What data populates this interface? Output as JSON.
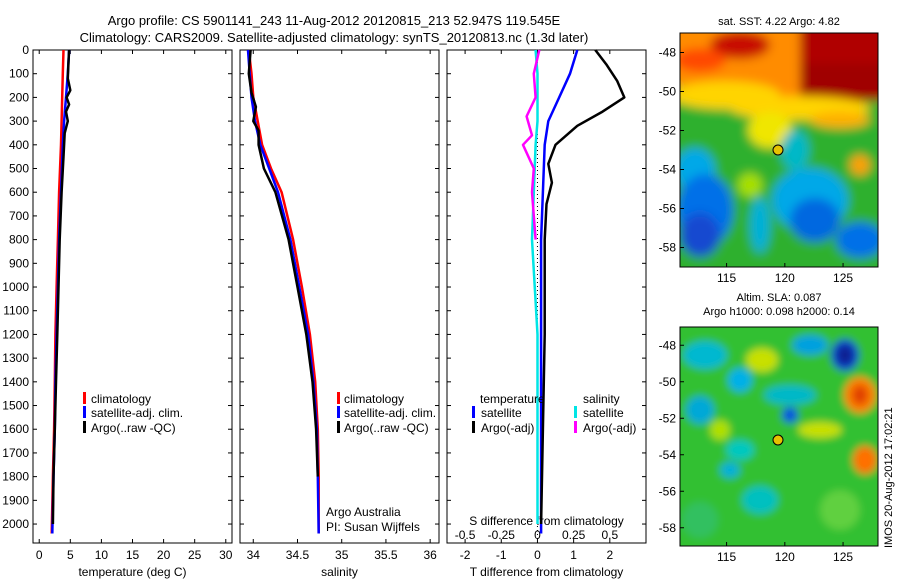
{
  "header": {
    "title_line1": "Argo profile: CS 5901141_243 11-Aug-2012 20120815_213 52.947S 119.545E",
    "title_line2": "Climatology: CARS2009. Satellite-adjusted climatology: synTS_20120813.nc (1.3d later)"
  },
  "colors": {
    "climatology": "#ff0000",
    "satellite": "#0000ff",
    "argo": "#000000",
    "argo_salinity": "#ff00ff",
    "satellite_salinity": "#00e5e5"
  },
  "panel_text": {
    "temp_legend": [
      "climatology",
      "satellite-adj. clim.",
      "Argo(..raw -QC)"
    ],
    "sal_legend": [
      "climatology",
      "satellite-adj. clim.",
      "Argo(..raw -QC)"
    ],
    "diff_legend_temp_title": "temperature",
    "diff_legend_sal_title": "salinity",
    "diff_legend_labels": [
      "satellite",
      "Argo(-adj)",
      "satellite",
      "Argo(-adj)"
    ],
    "credit_line1": "Argo Australia",
    "credit_line2": "PI: Susan Wijffels",
    "sst_title": "sat. SST: 4.22 Argo: 4.82",
    "sla_title_line1": "Altim. SLA: 0.087",
    "sla_title_line2": "Argo h1000: 0.098 h2000: 0.14",
    "timestamp": "IMOS 20-Aug-2012 17:02:21"
  },
  "chart_data": [
    {
      "id": "temperature",
      "type": "line",
      "xlabel": "temperature (deg C)",
      "ylabel": "",
      "xlim": [
        -1,
        31
      ],
      "ylim": [
        2080,
        0
      ],
      "xticks": [
        "0",
        "5",
        "10",
        "15",
        "20",
        "25",
        "30"
      ],
      "xtick_values": [
        0,
        5,
        10,
        15,
        20,
        25,
        30
      ],
      "yticks": [
        "0",
        "100",
        "200",
        "300",
        "400",
        "500",
        "600",
        "700",
        "800",
        "900",
        "1000",
        "1100",
        "1200",
        "1300",
        "1400",
        "1500",
        "1600",
        "1700",
        "1800",
        "1900",
        "2000"
      ],
      "ytick_values": [
        0,
        100,
        200,
        300,
        400,
        500,
        600,
        700,
        800,
        900,
        1000,
        1100,
        1200,
        1300,
        1400,
        1500,
        1600,
        1700,
        1800,
        1900,
        2000
      ],
      "series": [
        {
          "name": "climatology",
          "color": "#ff0000",
          "x": [
            3.9,
            3.8,
            3.7,
            3.6,
            3.5,
            3.2,
            3.0,
            2.8,
            2.6,
            2.5,
            2.4,
            2.2,
            2.0
          ],
          "y": [
            0,
            100,
            200,
            300,
            400,
            600,
            800,
            1000,
            1200,
            1400,
            1600,
            1800,
            2040
          ]
        },
        {
          "name": "satellite-adj. clim.",
          "color": "#0000ff",
          "x": [
            4.8,
            4.6,
            4.3,
            4.0,
            3.8,
            3.5,
            3.2,
            3.0,
            2.8,
            2.6,
            2.5,
            2.3,
            2.1
          ],
          "y": [
            0,
            100,
            200,
            300,
            400,
            600,
            800,
            1000,
            1200,
            1400,
            1600,
            1800,
            2040
          ]
        },
        {
          "name": "Argo(..raw -QC)",
          "color": "#000000",
          "x": [
            4.8,
            4.7,
            4.6,
            5.0,
            4.4,
            4.8,
            4.3,
            4.6,
            4.1,
            4.0,
            3.9,
            3.6,
            3.3,
            3.1,
            2.9,
            2.7,
            2.5,
            2.3,
            2.2
          ],
          "y": [
            0,
            60,
            120,
            170,
            200,
            230,
            260,
            300,
            350,
            400,
            450,
            600,
            800,
            1000,
            1200,
            1400,
            1600,
            1800,
            2000
          ]
        }
      ]
    },
    {
      "id": "salinity",
      "type": "line",
      "xlabel": "salinity",
      "ylabel": "",
      "xlim": [
        33.85,
        36.1
      ],
      "ylim": [
        2080,
        0
      ],
      "xticks": [
        "34",
        "34.5",
        "35",
        "35.5",
        "36"
      ],
      "xtick_values": [
        34,
        34.5,
        35,
        35.5,
        36
      ],
      "series": [
        {
          "name": "climatology",
          "color": "#ff0000",
          "x": [
            33.95,
            33.98,
            34.0,
            34.05,
            34.1,
            34.2,
            34.32,
            34.45,
            34.55,
            34.64,
            34.7,
            34.73,
            34.74,
            34.74
          ],
          "y": [
            0,
            100,
            200,
            300,
            400,
            500,
            600,
            800,
            1000,
            1200,
            1400,
            1600,
            1800,
            2040
          ]
        },
        {
          "name": "satellite-adj. clim.",
          "color": "#0000ff",
          "x": [
            33.94,
            33.96,
            33.98,
            34.02,
            34.08,
            34.18,
            34.28,
            34.42,
            34.52,
            34.62,
            34.68,
            34.72,
            34.73,
            34.74
          ],
          "y": [
            0,
            100,
            200,
            300,
            400,
            500,
            600,
            800,
            1000,
            1200,
            1400,
            1600,
            1800,
            2040
          ]
        },
        {
          "name": "Argo(..raw -QC)",
          "color": "#000000",
          "x": [
            33.97,
            33.95,
            33.98,
            34.03,
            34.0,
            34.06,
            34.06,
            34.12,
            34.25,
            34.4,
            34.5,
            34.6,
            34.67,
            34.71,
            34.73
          ],
          "y": [
            0,
            100,
            180,
            240,
            300,
            340,
            400,
            500,
            600,
            800,
            1000,
            1200,
            1400,
            1600,
            1800
          ]
        }
      ]
    },
    {
      "id": "difference",
      "type": "line",
      "xlabel": "T difference from climatology",
      "ylabel": "",
      "xlim": [
        -2.5,
        3.0
      ],
      "ylim": [
        2080,
        0
      ],
      "xticks": [
        "-2",
        "-1",
        "0",
        "1",
        "2"
      ],
      "xtick_values": [
        -2,
        -1,
        0,
        1,
        2
      ],
      "secondary_xlabel": "S difference from climatology",
      "secondary_xticks": [
        "-0.5",
        "-0.25",
        "0",
        "0.25",
        "0.5"
      ],
      "series": [
        {
          "name": "temperature satellite",
          "color": "#0000ff",
          "x": [
            1.1,
            0.9,
            0.6,
            0.3,
            0.2,
            0.15,
            0.1,
            0.1,
            0.1,
            0.1
          ],
          "y": [
            0,
            100,
            200,
            300,
            400,
            600,
            800,
            1200,
            1600,
            2040
          ]
        },
        {
          "name": "temperature Argo(-adj)",
          "color": "#000000",
          "x": [
            1.6,
            1.9,
            2.2,
            2.4,
            1.8,
            1.1,
            0.5,
            0.3,
            0.4,
            0.25,
            0.2,
            0.2,
            0.15,
            0.1
          ],
          "y": [
            0,
            60,
            130,
            200,
            260,
            320,
            400,
            480,
            560,
            650,
            800,
            1200,
            1600,
            2000
          ]
        },
        {
          "name": "salinity satellite",
          "color": "#00e5e5",
          "x": [
            -0.05,
            0.0,
            0.0,
            0.0,
            -0.05,
            -0.1,
            -0.15,
            0.0,
            0.0
          ],
          "y": [
            0,
            100,
            200,
            300,
            400,
            600,
            800,
            1200,
            2000
          ]
        },
        {
          "name": "salinity Argo(-adj)",
          "color": "#ff00ff",
          "x": [
            0.05,
            -0.1,
            -0.05,
            -0.3,
            -0.15,
            -0.4,
            -0.1,
            -0.15,
            -0.05
          ],
          "y": [
            0,
            100,
            200,
            280,
            360,
            400,
            500,
            600,
            800
          ]
        }
      ]
    },
    {
      "id": "sst_map",
      "type": "heatmap",
      "title": "sat. SST: 4.22 Argo: 4.82",
      "xticks": [
        "115",
        "120",
        "125"
      ],
      "yticks": [
        "-48",
        "-50",
        "-52",
        "-54",
        "-56",
        "-58"
      ],
      "xlim": [
        111,
        128
      ],
      "ylim": [
        -59,
        -47
      ],
      "marker": {
        "lon": 119.545,
        "lat": -52.947
      }
    },
    {
      "id": "sla_map",
      "type": "heatmap",
      "title": "Altim. SLA: 0.087",
      "subtitle": "Argo h1000: 0.098 h2000: 0.14",
      "xticks": [
        "115",
        "120",
        "125"
      ],
      "yticks": [
        "-48",
        "-50",
        "-52",
        "-54",
        "-56",
        "-58"
      ],
      "xlim": [
        111,
        128
      ],
      "ylim": [
        -59,
        -47
      ],
      "marker": {
        "lon": 119.545,
        "lat": -52.947
      }
    }
  ]
}
